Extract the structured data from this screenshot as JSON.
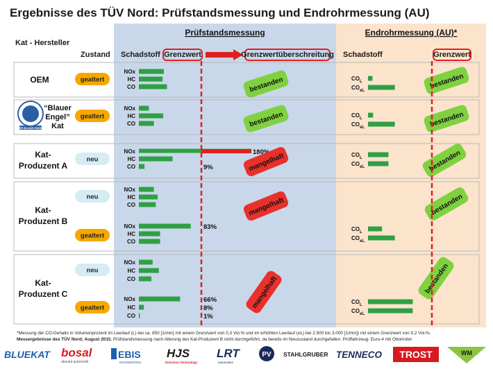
{
  "title": "Ergebnisse des TÜV Nord: Prüfstandsmessung  und Endrohrmessung (AU)",
  "colors": {
    "pruefstand_bg": "#c9d7ea",
    "endrohr_bg": "#fbe3cc",
    "limit_line": "#e02020",
    "bar_green": "#2ea043",
    "bar_red": "#e02020",
    "pass_green": "#7fd140",
    "fail_red": "#e8312a",
    "neu_pill": "#d6ecf5",
    "gealtert_pill": "#f6a800"
  },
  "headers": {
    "pruefstand": "Prüfstandsmessung",
    "endrohr": "Endrohrmessung (AU)*",
    "kat_hersteller": "Kat - Hersteller",
    "zustand": "Zustand",
    "schadstoff": "Schadstoff",
    "grenzwert": "Grenzwert",
    "ueberschreitung": "Grenzwertüberschreitung",
    "schadstoff_au": "Schadstoff",
    "grenzwert_au": "Grenzwert"
  },
  "manufacturers": {
    "oem": "OEM",
    "blauer_engel": [
      "“Blauer",
      "Engel”",
      "Kat"
    ],
    "kat_a": [
      "Kat-",
      "Produzent A"
    ],
    "kat_b": [
      "Kat-",
      "Produzent B"
    ],
    "kat_c": [
      "Kat-",
      "Produzent C"
    ]
  },
  "states": {
    "neu": "neu",
    "gealtert": "gealtert"
  },
  "results": {
    "pass": "bestanden",
    "fail": "mangelhaft"
  },
  "pollutants": {
    "nox": "NOx",
    "hc": "HC",
    "co": "CO",
    "col": "CO",
    "col_sub": "L",
    "coel": "CO",
    "coel_sub": "eL"
  },
  "blauer_engel_logo_text": "DER BLAUE ENGEL",
  "chart_data": {
    "type": "bar",
    "title": "Ergebnisse des TÜV Nord: Prüfstandsmessung  und Endrohrmessung (AU)",
    "unit": "% des Grenzwerts",
    "limit_value": 100,
    "series": [
      {
        "manufacturer": "OEM",
        "state": "gealtert",
        "values": {
          "NOx": 40,
          "HC": 38,
          "CO": 45
        },
        "labels": {},
        "pruefstand": "bestanden",
        "au": {
          "CO_L": 7,
          "CO_eL": 42
        },
        "au_result": "bestanden"
      },
      {
        "manufacturer": "Blauer Engel Kat",
        "state": "gealtert",
        "values": {
          "NOx": 16,
          "HC": 39,
          "CO": 24
        },
        "labels": {},
        "pruefstand": "bestanden",
        "au": {
          "CO_L": 8,
          "CO_eL": 42
        },
        "au_result": "bestanden"
      },
      {
        "manufacturer": "Kat-Produzent A",
        "state": "neu",
        "values": {
          "NOx": 180,
          "HC": 54,
          "CO": 9
        },
        "labels": {
          "NOx": "180%",
          "CO": "9%"
        },
        "pruefstand": "mangelhaft",
        "au": {
          "CO_L": 32,
          "CO_eL": 32
        },
        "au_result": "bestanden"
      },
      {
        "manufacturer": "Kat-Produzent B",
        "state": "neu",
        "values": {
          "NOx": 24,
          "HC": 30,
          "CO": 27
        },
        "labels": {},
        "pruefstand": "mangelhaft",
        "au": {},
        "au_result": "bestanden"
      },
      {
        "manufacturer": "Kat-Produzent B",
        "state": "gealtert",
        "values": {
          "NOx": 83,
          "HC": 34,
          "CO": 34
        },
        "labels": {
          "NOx": "83%"
        },
        "pruefstand": "mangelhaft",
        "au": {
          "CO_L": 22,
          "CO_eL": 42
        },
        "au_result": "bestanden"
      },
      {
        "manufacturer": "Kat-Produzent C",
        "state": "neu",
        "values": {
          "NOx": 22,
          "HC": 32,
          "CO": 20
        },
        "labels": {},
        "pruefstand": "mangelhaft",
        "au": {},
        "au_result": "bestanden"
      },
      {
        "manufacturer": "Kat-Produzent C",
        "state": "gealtert",
        "values": {
          "NOx": 66,
          "HC": 8,
          "CO": 1
        },
        "labels": {
          "NOx": "66%",
          "HC": "8%",
          "CO": "1%"
        },
        "pruefstand": "mangelhaft",
        "au": {
          "CO_L": 70,
          "CO_eL": 70
        },
        "au_result": "bestanden"
      }
    ]
  },
  "footnote": {
    "line1": "*Messung der CO-Gehalts in Volumenprozent im Leerlauf (L) bei ca. 850 [1/min] mit einem Grenzwert von 0,3 Vol.% und im erhöhten Leerlauf (eL) bei 2.500 bis 3.000 [1/min]) mit einem Grenzwert von 0,2 Vol.%.",
    "line2_bold": "Messergebnisse des TÜV Nord; August 2015.",
    "line2": "  Prüfstandsmessung nach Alterung des Kat-Produzent B nicht durchgeführt, da bereits im Neuzustand durchgefallen.   Prüffahrzeug: Euro-4 mit Ottomotor"
  },
  "logos": [
    "BLUEKAT",
    "bosal",
    "EBIS",
    "HJS",
    "LRT",
    "PV",
    "STAHLGRUBER",
    "TENNECO",
    "TROST",
    "WM"
  ],
  "logo_subtexts": {
    "bosal": "absolut automobil",
    "ebis": "ENGINEERING",
    "hjs": "Emission Technology",
    "lrt": "automotive"
  }
}
